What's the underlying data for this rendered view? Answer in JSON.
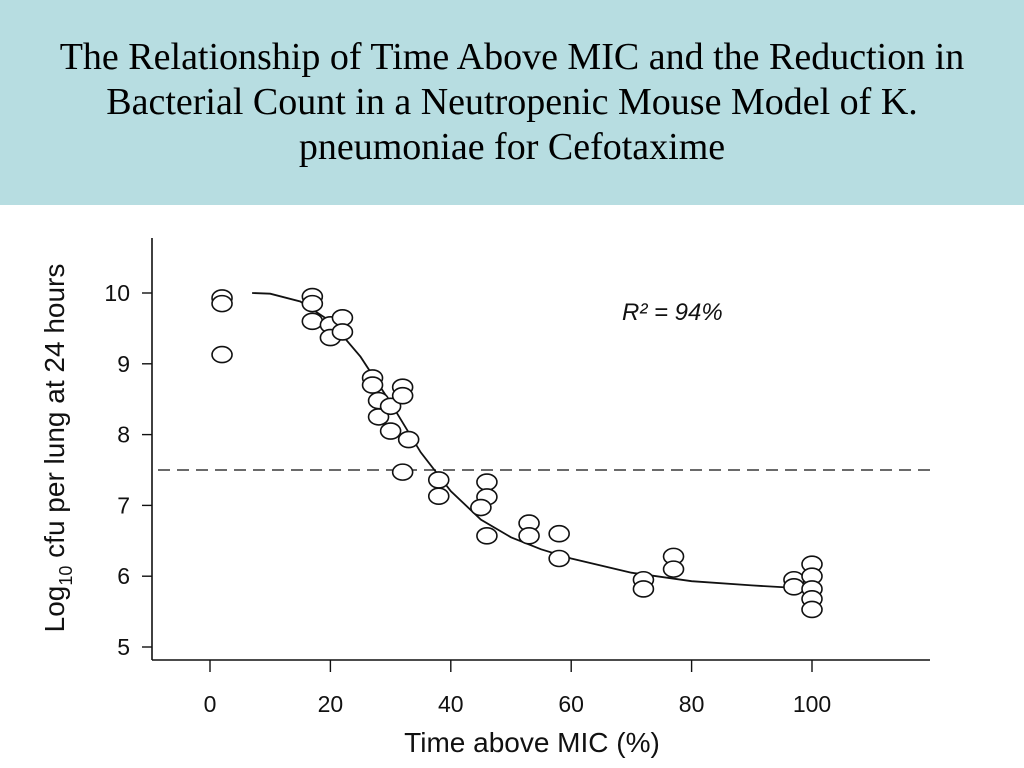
{
  "slide": {
    "title": "The Relationship of Time Above MIC and the Reduction in Bacterial Count in a Neutropenic Mouse Model of K. pneumoniae for Cefotaxime"
  },
  "colors": {
    "banner_bg": "#b7dde1",
    "ink": "#111111"
  },
  "chart_data": {
    "type": "scatter",
    "xlabel": "Time above MIC (%)",
    "ylabel_main": "Log",
    "ylabel_sub": "10",
    "ylabel_rest": " cfu per lung at 24 hours",
    "xlim": [
      -10,
      120
    ],
    "ylim": [
      4.8,
      10.7
    ],
    "x_ticks": [
      0,
      20,
      40,
      60,
      80,
      100
    ],
    "x_tick_labels": [
      "0",
      "20",
      "40",
      "60",
      "80",
      "100"
    ],
    "y_ticks": [
      5,
      6,
      7,
      8,
      9,
      10
    ],
    "y_tick_labels": [
      "5",
      "6",
      "7",
      "8",
      "9",
      "10"
    ],
    "annotation": "R² = 94%",
    "reference_line": {
      "y": 7.5,
      "style": "dashed"
    },
    "points": [
      [
        2,
        9.93
      ],
      [
        2,
        9.85
      ],
      [
        2,
        9.13
      ],
      [
        17,
        9.95
      ],
      [
        17,
        9.85
      ],
      [
        17,
        9.6
      ],
      [
        20,
        9.55
      ],
      [
        20,
        9.37
      ],
      [
        22,
        9.65
      ],
      [
        22,
        9.45
      ],
      [
        27,
        8.8
      ],
      [
        27,
        8.7
      ],
      [
        28,
        8.48
      ],
      [
        28,
        8.25
      ],
      [
        30,
        8.4
      ],
      [
        30,
        8.05
      ],
      [
        32,
        8.67
      ],
      [
        32,
        8.55
      ],
      [
        33,
        7.93
      ],
      [
        32,
        7.47
      ],
      [
        38,
        7.36
      ],
      [
        38,
        7.13
      ],
      [
        46,
        7.33
      ],
      [
        46,
        7.12
      ],
      [
        45,
        6.97
      ],
      [
        46,
        6.57
      ],
      [
        53,
        6.75
      ],
      [
        53,
        6.57
      ],
      [
        58,
        6.6
      ],
      [
        58,
        6.25
      ],
      [
        72,
        5.95
      ],
      [
        72,
        5.82
      ],
      [
        77,
        6.28
      ],
      [
        77,
        6.1
      ],
      [
        97,
        5.95
      ],
      [
        97,
        5.85
      ],
      [
        100,
        6.17
      ],
      [
        100,
        6.0
      ],
      [
        100,
        5.82
      ],
      [
        100,
        5.68
      ],
      [
        100,
        5.53
      ]
    ],
    "fit_curve": [
      [
        7,
        10.0
      ],
      [
        10,
        9.99
      ],
      [
        15,
        9.88
      ],
      [
        20,
        9.6
      ],
      [
        25,
        9.1
      ],
      [
        30,
        8.45
      ],
      [
        35,
        7.75
      ],
      [
        40,
        7.2
      ],
      [
        45,
        6.8
      ],
      [
        50,
        6.55
      ],
      [
        55,
        6.38
      ],
      [
        60,
        6.25
      ],
      [
        70,
        6.05
      ],
      [
        80,
        5.93
      ],
      [
        90,
        5.87
      ],
      [
        100,
        5.82
      ]
    ]
  }
}
